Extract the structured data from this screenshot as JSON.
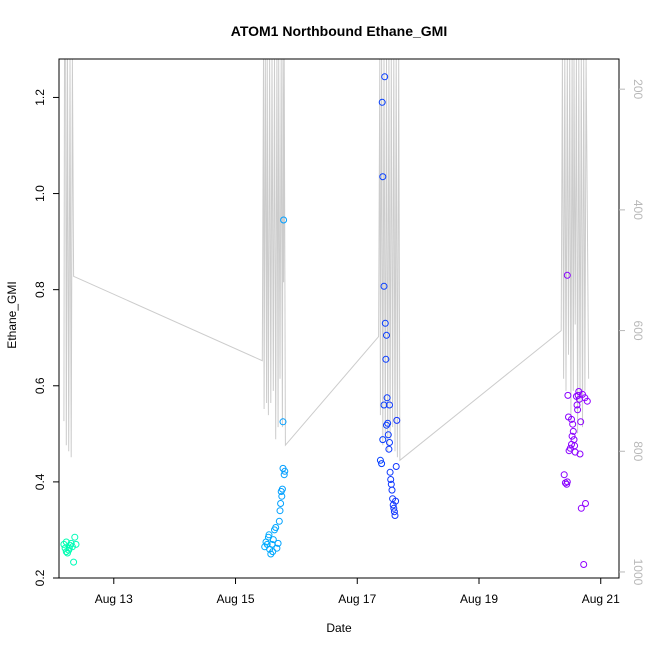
{
  "chart_data": {
    "type": "scatter",
    "title": "ATOM1 Northbound Ethane_GMI",
    "xlabel": "Date",
    "ylabel": "Ethane_GMI",
    "x_unit": "days in August",
    "xlim": [
      12.1,
      21.3
    ],
    "ylim": [
      0.2,
      1.28
    ],
    "x_ticks": [
      {
        "value": 13,
        "label": "Aug 13"
      },
      {
        "value": 15,
        "label": "Aug 15"
      },
      {
        "value": 17,
        "label": "Aug 17"
      },
      {
        "value": 19,
        "label": "Aug 19"
      },
      {
        "value": 21,
        "label": "Aug 21"
      }
    ],
    "y_ticks": [
      0.2,
      0.4,
      0.6,
      0.8,
      1.0,
      1.2
    ],
    "y_tick_labels": [
      "0.2",
      "0.4",
      "0.6",
      "0.8",
      "1.0",
      "1.2"
    ],
    "right_axis": {
      "description": "pressure, reversed",
      "lim": [
        1010,
        150
      ],
      "ticks": [
        200,
        400,
        600,
        800,
        1000
      ],
      "color": "#b8b8b8"
    },
    "grid": false,
    "legend": "none",
    "point_style": "open-circle",
    "point_color_scale": [
      "#00ffb0",
      "#00e5ff",
      "#00a8ff",
      "#0040ff",
      "#6a00ff",
      "#9000ff"
    ],
    "points": [
      [
        12.18,
        0.27
      ],
      [
        12.2,
        0.262
      ],
      [
        12.22,
        0.275
      ],
      [
        12.24,
        0.252
      ],
      [
        12.26,
        0.258
      ],
      [
        12.28,
        0.268
      ],
      [
        12.3,
        0.272
      ],
      [
        12.32,
        0.265
      ],
      [
        12.34,
        0.233
      ],
      [
        12.36,
        0.285
      ],
      [
        12.38,
        0.27
      ],
      [
        12.22,
        0.255
      ],
      [
        12.27,
        0.262
      ],
      [
        15.48,
        0.265
      ],
      [
        15.5,
        0.275
      ],
      [
        15.52,
        0.27
      ],
      [
        15.54,
        0.285
      ],
      [
        15.56,
        0.26
      ],
      [
        15.58,
        0.25
      ],
      [
        15.6,
        0.27
      ],
      [
        15.62,
        0.28
      ],
      [
        15.64,
        0.3
      ],
      [
        15.66,
        0.305
      ],
      [
        15.68,
        0.262
      ],
      [
        15.7,
        0.272
      ],
      [
        15.72,
        0.318
      ],
      [
        15.73,
        0.34
      ],
      [
        15.74,
        0.355
      ],
      [
        15.75,
        0.38
      ],
      [
        15.76,
        0.37
      ],
      [
        15.77,
        0.385
      ],
      [
        15.78,
        0.428
      ],
      [
        15.8,
        0.415
      ],
      [
        15.81,
        0.422
      ],
      [
        15.78,
        0.525
      ],
      [
        15.79,
        0.945
      ],
      [
        15.55,
        0.29
      ],
      [
        15.61,
        0.255
      ],
      [
        17.38,
        0.445
      ],
      [
        17.4,
        0.438
      ],
      [
        17.41,
        1.19
      ],
      [
        17.42,
        1.035
      ],
      [
        17.44,
        0.807
      ],
      [
        17.45,
        1.243
      ],
      [
        17.46,
        0.73
      ],
      [
        17.47,
        0.655
      ],
      [
        17.48,
        0.705
      ],
      [
        17.49,
        0.575
      ],
      [
        17.5,
        0.522
      ],
      [
        17.51,
        0.498
      ],
      [
        17.52,
        0.468
      ],
      [
        17.53,
        0.482
      ],
      [
        17.54,
        0.42
      ],
      [
        17.55,
        0.405
      ],
      [
        17.56,
        0.395
      ],
      [
        17.57,
        0.383
      ],
      [
        17.58,
        0.365
      ],
      [
        17.59,
        0.352
      ],
      [
        17.6,
        0.345
      ],
      [
        17.61,
        0.338
      ],
      [
        17.62,
        0.33
      ],
      [
        17.63,
        0.36
      ],
      [
        17.64,
        0.432
      ],
      [
        17.65,
        0.528
      ],
      [
        17.44,
        0.56
      ],
      [
        17.48,
        0.518
      ],
      [
        17.53,
        0.56
      ],
      [
        17.42,
        0.488
      ],
      [
        20.4,
        0.415
      ],
      [
        20.42,
        0.398
      ],
      [
        20.44,
        0.395
      ],
      [
        20.45,
        0.83
      ],
      [
        20.46,
        0.58
      ],
      [
        20.47,
        0.535
      ],
      [
        20.48,
        0.465
      ],
      [
        20.5,
        0.47
      ],
      [
        20.52,
        0.478
      ],
      [
        20.53,
        0.495
      ],
      [
        20.54,
        0.52
      ],
      [
        20.55,
        0.505
      ],
      [
        20.56,
        0.488
      ],
      [
        20.57,
        0.475
      ],
      [
        20.58,
        0.462
      ],
      [
        20.6,
        0.578
      ],
      [
        20.61,
        0.56
      ],
      [
        20.62,
        0.55
      ],
      [
        20.63,
        0.58
      ],
      [
        20.64,
        0.588
      ],
      [
        20.65,
        0.572
      ],
      [
        20.66,
        0.458
      ],
      [
        20.67,
        0.525
      ],
      [
        20.68,
        0.345
      ],
      [
        20.7,
        0.582
      ],
      [
        20.72,
        0.228
      ],
      [
        20.74,
        0.575
      ],
      [
        20.75,
        0.355
      ],
      [
        20.78,
        0.568
      ],
      [
        20.45,
        0.4
      ],
      [
        20.52,
        0.53
      ]
    ],
    "pressure_series": {
      "color": "#cccccc",
      "values": [
        [
          12.18,
          750
        ],
        [
          12.19,
          150
        ],
        [
          12.21,
          150
        ],
        [
          12.22,
          790
        ],
        [
          12.24,
          150
        ],
        [
          12.26,
          800
        ],
        [
          12.28,
          150
        ],
        [
          12.3,
          810
        ],
        [
          12.32,
          150
        ],
        [
          12.34,
          510
        ],
        [
          15.44,
          650
        ],
        [
          15.46,
          150
        ],
        [
          15.47,
          730
        ],
        [
          15.49,
          150
        ],
        [
          15.51,
          720
        ],
        [
          15.52,
          150
        ],
        [
          15.54,
          740
        ],
        [
          15.56,
          150
        ],
        [
          15.58,
          720
        ],
        [
          15.6,
          150
        ],
        [
          15.62,
          700
        ],
        [
          15.64,
          150
        ],
        [
          15.66,
          780
        ],
        [
          15.68,
          150
        ],
        [
          15.7,
          760
        ],
        [
          15.71,
          150
        ],
        [
          15.73,
          680
        ],
        [
          15.75,
          150
        ],
        [
          15.77,
          760
        ],
        [
          15.78,
          150
        ],
        [
          15.79,
          520
        ],
        [
          15.8,
          150
        ],
        [
          15.82,
          790
        ],
        [
          17.35,
          610
        ],
        [
          17.37,
          150
        ],
        [
          17.38,
          740
        ],
        [
          17.4,
          150
        ],
        [
          17.42,
          790
        ],
        [
          17.44,
          150
        ],
        [
          17.46,
          780
        ],
        [
          17.48,
          150
        ],
        [
          17.5,
          800
        ],
        [
          17.52,
          150
        ],
        [
          17.54,
          780
        ],
        [
          17.56,
          150
        ],
        [
          17.58,
          760
        ],
        [
          17.6,
          150
        ],
        [
          17.62,
          800
        ],
        [
          17.64,
          150
        ],
        [
          17.66,
          810
        ],
        [
          17.68,
          150
        ],
        [
          17.7,
          815
        ],
        [
          20.35,
          600
        ],
        [
          20.37,
          150
        ],
        [
          20.39,
          680
        ],
        [
          20.41,
          150
        ],
        [
          20.43,
          700
        ],
        [
          20.45,
          150
        ],
        [
          20.47,
          640
        ],
        [
          20.49,
          150
        ],
        [
          20.51,
          750
        ],
        [
          20.53,
          150
        ],
        [
          20.55,
          700
        ],
        [
          20.56,
          150
        ],
        [
          20.58,
          590
        ],
        [
          20.6,
          150
        ],
        [
          20.62,
          770
        ],
        [
          20.64,
          150
        ],
        [
          20.66,
          720
        ],
        [
          20.68,
          150
        ],
        [
          20.7,
          760
        ],
        [
          20.72,
          150
        ],
        [
          20.74,
          700
        ],
        [
          20.76,
          150
        ],
        [
          20.8,
          680
        ]
      ]
    }
  }
}
